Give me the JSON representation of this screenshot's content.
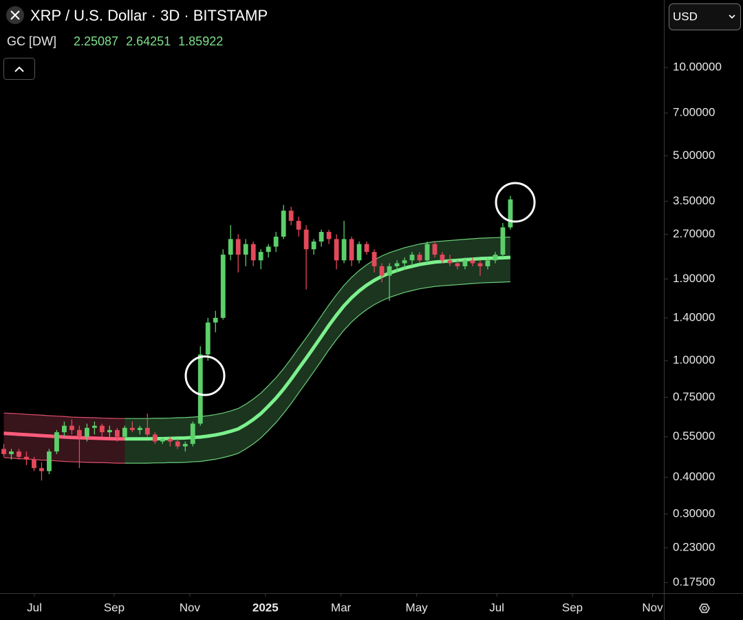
{
  "chart_data": {
    "type": "candlestick",
    "title": "XRP / U.S. Dollar · 3D · BITSTAMP",
    "currency": "USD",
    "indicator": {
      "name": "GC [DW]",
      "values": [
        2.25087,
        2.64251,
        1.85922
      ],
      "color": "#7ee08a"
    },
    "log_scale": true,
    "up_color": "#5ccf6b",
    "down_color": "#e2495b",
    "open": [
      0.5,
      0.48,
      0.49,
      0.47,
      0.46,
      0.43,
      0.42,
      0.49,
      0.57,
      0.6,
      0.58,
      0.55,
      0.59,
      0.6,
      0.57,
      0.58,
      0.55,
      0.59,
      0.58,
      0.59,
      0.56,
      0.53,
      0.54,
      0.53,
      0.51,
      0.52,
      0.61,
      1.05,
      1.35,
      1.4,
      2.3,
      2.6,
      2.3,
      2.5,
      2.2,
      2.35,
      2.45,
      2.65,
      3.25,
      3.0,
      2.8,
      2.4,
      2.55,
      2.75,
      2.6,
      2.2,
      2.6,
      2.2,
      2.5,
      2.35,
      2.1,
      1.95,
      2.1,
      2.15,
      2.2,
      2.3,
      2.2,
      2.5,
      2.3,
      2.2,
      2.15,
      2.1,
      2.2,
      2.15,
      2.1,
      2.2,
      2.3,
      2.85
    ],
    "high": [
      0.52,
      0.5,
      0.5,
      0.49,
      0.47,
      0.45,
      0.5,
      0.58,
      0.62,
      0.63,
      0.6,
      0.61,
      0.62,
      0.61,
      0.6,
      0.59,
      0.6,
      0.62,
      0.6,
      0.66,
      0.57,
      0.55,
      0.55,
      0.54,
      0.53,
      0.62,
      1.12,
      1.4,
      1.48,
      2.4,
      2.9,
      2.7,
      2.6,
      2.55,
      2.4,
      2.5,
      2.75,
      3.4,
      3.35,
      3.1,
      2.9,
      2.6,
      2.8,
      2.8,
      2.7,
      3.0,
      2.65,
      2.55,
      2.55,
      2.4,
      2.15,
      2.15,
      2.2,
      2.25,
      2.35,
      2.35,
      2.55,
      2.55,
      2.35,
      2.3,
      2.2,
      2.25,
      2.25,
      2.2,
      2.25,
      2.35,
      2.95,
      3.65
    ],
    "low": [
      0.47,
      0.46,
      0.46,
      0.44,
      0.42,
      0.39,
      0.41,
      0.48,
      0.55,
      0.56,
      0.43,
      0.53,
      0.56,
      0.55,
      0.55,
      0.53,
      0.54,
      0.57,
      0.56,
      0.55,
      0.52,
      0.52,
      0.51,
      0.5,
      0.49,
      0.51,
      0.6,
      1.0,
      1.25,
      1.38,
      2.2,
      2.0,
      2.1,
      2.1,
      2.05,
      2.25,
      2.35,
      2.6,
      2.9,
      2.65,
      1.75,
      2.3,
      2.45,
      2.5,
      2.05,
      2.15,
      2.1,
      2.15,
      2.3,
      2.0,
      1.85,
      1.6,
      2.0,
      2.05,
      2.1,
      2.15,
      2.15,
      2.25,
      2.15,
      2.1,
      2.05,
      2.05,
      2.1,
      1.95,
      2.05,
      2.15,
      2.25,
      2.8
    ],
    "close": [
      0.48,
      0.49,
      0.47,
      0.46,
      0.43,
      0.42,
      0.49,
      0.57,
      0.6,
      0.58,
      0.55,
      0.59,
      0.6,
      0.57,
      0.58,
      0.55,
      0.59,
      0.58,
      0.59,
      0.56,
      0.53,
      0.54,
      0.53,
      0.51,
      0.52,
      0.61,
      1.05,
      1.35,
      1.4,
      2.3,
      2.6,
      2.3,
      2.5,
      2.2,
      2.35,
      2.45,
      2.65,
      3.25,
      3.0,
      2.8,
      2.4,
      2.55,
      2.75,
      2.6,
      2.2,
      2.6,
      2.2,
      2.5,
      2.35,
      2.1,
      1.95,
      2.1,
      2.15,
      2.2,
      2.3,
      2.2,
      2.5,
      2.3,
      2.2,
      2.15,
      2.1,
      2.2,
      2.15,
      2.1,
      2.2,
      2.3,
      2.85,
      3.55
    ],
    "channels": [
      {
        "color": "#ff5c7c",
        "x0": 0,
        "mid": [
          0.565,
          0.563,
          0.561,
          0.559,
          0.557,
          0.555,
          0.553,
          0.551,
          0.549,
          0.547,
          0.546,
          0.545,
          0.544,
          0.543,
          0.542,
          0.541,
          0.541
        ],
        "upper": [
          0.663,
          0.661,
          0.659,
          0.656,
          0.654,
          0.652,
          0.649,
          0.647,
          0.645,
          0.642,
          0.641,
          0.64,
          0.639,
          0.637,
          0.636,
          0.635,
          0.635
        ],
        "lower": [
          0.467,
          0.465,
          0.463,
          0.462,
          0.46,
          0.458,
          0.457,
          0.455,
          0.453,
          0.452,
          0.451,
          0.45,
          0.449,
          0.449,
          0.448,
          0.447,
          0.447
        ]
      },
      {
        "color": "#7cf08c",
        "x0": 16,
        "mid": [
          0.541,
          0.541,
          0.541,
          0.541,
          0.542,
          0.542,
          0.543,
          0.544,
          0.545,
          0.547,
          0.549,
          0.553,
          0.558,
          0.565,
          0.574,
          0.585,
          0.605,
          0.63,
          0.66,
          0.7,
          0.745,
          0.8,
          0.865,
          0.94,
          1.02,
          1.11,
          1.21,
          1.32,
          1.43,
          1.54,
          1.64,
          1.73,
          1.81,
          1.88,
          1.94,
          1.99,
          2.03,
          2.07,
          2.1,
          2.13,
          2.15,
          2.17,
          2.18,
          2.19,
          2.2,
          2.21,
          2.22,
          2.23,
          2.235,
          2.24,
          2.245,
          2.25087
        ],
        "upper": [
          0.635,
          0.635,
          0.635,
          0.635,
          0.636,
          0.636,
          0.637,
          0.639,
          0.64,
          0.642,
          0.645,
          0.649,
          0.655,
          0.663,
          0.674,
          0.687,
          0.71,
          0.74,
          0.775,
          0.822,
          0.875,
          0.939,
          1.016,
          1.104,
          1.197,
          1.303,
          1.421,
          1.55,
          1.679,
          1.808,
          1.925,
          2.031,
          2.125,
          2.207,
          2.278,
          2.336,
          2.383,
          2.43,
          2.465,
          2.501,
          2.524,
          2.548,
          2.559,
          2.571,
          2.583,
          2.595,
          2.606,
          2.618,
          2.624,
          2.63,
          2.636,
          2.64251
        ],
        "lower": [
          0.447,
          0.447,
          0.447,
          0.447,
          0.448,
          0.448,
          0.449,
          0.449,
          0.45,
          0.452,
          0.453,
          0.457,
          0.461,
          0.467,
          0.474,
          0.483,
          0.5,
          0.52,
          0.545,
          0.578,
          0.615,
          0.661,
          0.714,
          0.776,
          0.843,
          0.917,
          0.999,
          1.09,
          1.181,
          1.272,
          1.355,
          1.429,
          1.495,
          1.553,
          1.602,
          1.644,
          1.677,
          1.71,
          1.735,
          1.759,
          1.776,
          1.792,
          1.801,
          1.809,
          1.817,
          1.825,
          1.834,
          1.842,
          1.846,
          1.85,
          1.854,
          1.85922
        ]
      }
    ],
    "xlim": [
      -0.5,
      87.3
    ],
    "xticks": [
      {
        "value": 4.05,
        "label": "Jul"
      },
      {
        "value": 14.6,
        "label": "Sep"
      },
      {
        "value": 24.6,
        "label": "Nov"
      },
      {
        "value": 34.6,
        "label": "2025"
      },
      {
        "value": 44.6,
        "label": "Mar"
      },
      {
        "value": 54.6,
        "label": "May"
      },
      {
        "value": 65.2,
        "label": "Jul"
      },
      {
        "value": 75.2,
        "label": "Sep"
      },
      {
        "value": 85.8,
        "label": "Nov"
      }
    ],
    "ylim": [
      0.161,
      13.7
    ],
    "yticks": [
      {
        "value": 10,
        "label": "10.00000"
      },
      {
        "value": 7,
        "label": "7.00000"
      },
      {
        "value": 5,
        "label": "5.00000"
      },
      {
        "value": 3.5,
        "label": "3.50000"
      },
      {
        "value": 2.7,
        "label": "2.70000"
      },
      {
        "value": 1.9,
        "label": "1.90000"
      },
      {
        "value": 1.4,
        "label": "1.40000"
      },
      {
        "value": 1,
        "label": "1.00000"
      },
      {
        "value": 0.75,
        "label": "0.75000"
      },
      {
        "value": 0.55,
        "label": "0.55000"
      },
      {
        "value": 0.4,
        "label": "0.40000"
      },
      {
        "value": 0.3,
        "label": "0.30000"
      },
      {
        "value": 0.23,
        "label": "0.23000"
      },
      {
        "value": 0.175,
        "label": "0.17500"
      }
    ]
  }
}
